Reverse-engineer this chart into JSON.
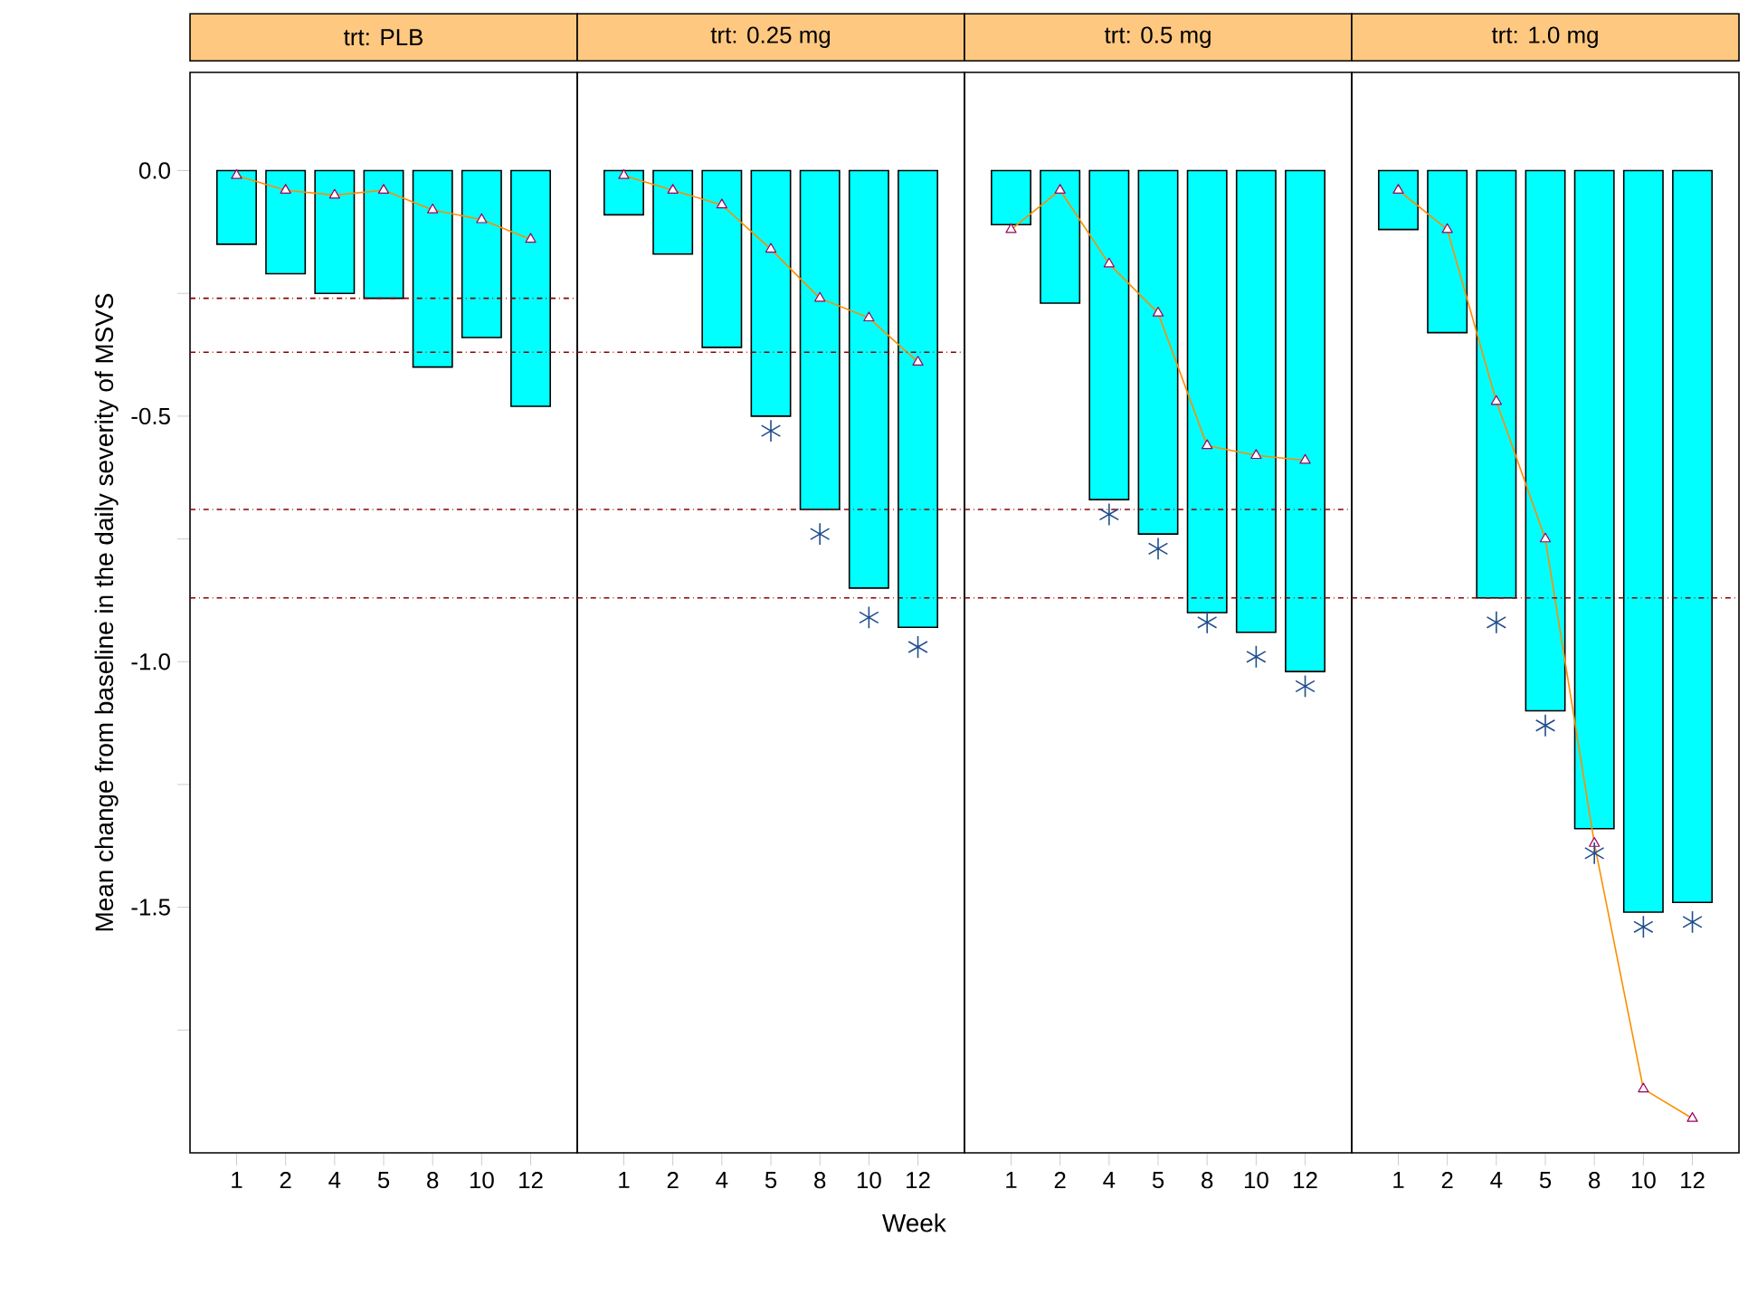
{
  "chart_data": [
    {
      "type": "bar",
      "title": "trt: PLB",
      "ylabel": "Mean change from baseline in the daily severity of MSVS",
      "categories": [
        "1",
        "2",
        "4",
        "5",
        "8",
        "10",
        "12"
      ],
      "ylim": [
        -2.0,
        0.2
      ],
      "yticks": [
        {
          "value": 0,
          "label": "0.0"
        },
        {
          "value": -0.25,
          "label": null
        },
        -0.5,
        {
          "value": -0.75,
          "label": null
        },
        {
          "value": -1,
          "label": "-1.0"
        },
        {
          "value": -1.25,
          "label": null
        },
        -1.5,
        {
          "value": -1.75,
          "label": null
        }
      ],
      "series": [
        {
          "color": "#00ffff",
          "values": [
            -0.15,
            -0.21,
            -0.25,
            -0.26,
            -0.4,
            -0.34,
            -0.48
          ]
        },
        {
          "type": "line",
          "color": "#ff8c00",
          "marker": "triangle",
          "values": [
            -0.01,
            -0.04,
            -0.05,
            -0.04,
            -0.08,
            -0.1,
            -0.14
          ]
        }
      ],
      "ref_lines": [
        {
          "axis": "y",
          "value": -0.26,
          "color": "#8b0000",
          "line_style": "dashdot"
        },
        {
          "axis": "y",
          "value": -0.37,
          "color": "#8b0000",
          "line_style": "dashdot"
        },
        {
          "axis": "y",
          "value": -0.69,
          "color": "#8b0000",
          "line_style": "dashdot"
        },
        {
          "axis": "y",
          "value": -0.87,
          "color": "#8b0000",
          "line_style": "dashdot"
        }
      ]
    },
    {
      "type": "bar",
      "title": "trt: 0.25 mg",
      "xlabel": "Week",
      "categories": [
        "1",
        "2",
        "4",
        "5",
        "8",
        "10",
        "12"
      ],
      "ylim": [
        -2.0,
        0.2
      ],
      "tick_labels": "x",
      "series": [
        {
          "color": "#00ffff",
          "values": [
            -0.09,
            -0.17,
            -0.36,
            -0.5,
            -0.69,
            -0.85,
            -0.93
          ]
        },
        {
          "type": "line",
          "color": "#ff8c00",
          "marker": "triangle",
          "values": [
            -0.01,
            -0.04,
            -0.07,
            -0.16,
            -0.26,
            -0.3,
            -0.39
          ]
        },
        {
          "type": "scatter",
          "color": "#1f4e8c",
          "marker": "cross",
          "values": [
            null,
            null,
            null,
            -0.53,
            -0.74,
            -0.91,
            -0.97
          ]
        }
      ],
      "ref_lines": [
        {
          "axis": "y",
          "value": -0.37,
          "color": "#8b0000",
          "line_style": "dashdot"
        },
        {
          "axis": "y",
          "value": -0.69,
          "color": "#8b0000",
          "line_style": "dashdot"
        },
        {
          "axis": "y",
          "value": -0.87,
          "color": "#8b0000",
          "line_style": "dashdot"
        }
      ]
    },
    {
      "type": "bar",
      "title": "trt: 0.5 mg",
      "categories": [
        "1",
        "2",
        "4",
        "5",
        "8",
        "10",
        "12"
      ],
      "ylim": [
        -2.0,
        0.2
      ],
      "tick_labels": "x",
      "series": [
        {
          "color": "#00ffff",
          "values": [
            -0.11,
            -0.27,
            -0.67,
            -0.74,
            -0.9,
            -0.94,
            -1.02
          ]
        },
        {
          "type": "line",
          "color": "#ff8c00",
          "marker": "triangle",
          "values": [
            -0.12,
            -0.04,
            -0.19,
            -0.29,
            -0.56,
            -0.58,
            -0.59
          ]
        },
        {
          "type": "scatter",
          "color": "#1f4e8c",
          "marker": "cross",
          "values": [
            null,
            null,
            -0.7,
            -0.77,
            -0.92,
            -0.99,
            -1.05
          ]
        }
      ],
      "ref_lines": [
        {
          "axis": "y",
          "value": -0.69,
          "color": "#8b0000",
          "line_style": "dashdot"
        },
        {
          "axis": "y",
          "value": -0.87,
          "color": "#8b0000",
          "line_style": "dashdot"
        }
      ]
    },
    {
      "type": "bar",
      "title": "trt: 1.0 mg",
      "categories": [
        "1",
        "2",
        "4",
        "5",
        "8",
        "10",
        "12"
      ],
      "ylim": [
        -2.0,
        0.2
      ],
      "tick_labels": "x",
      "series": [
        {
          "color": "#00ffff",
          "values": [
            -0.12,
            -0.33,
            -0.87,
            -1.1,
            -1.34,
            -1.51,
            -1.49
          ]
        },
        {
          "type": "line",
          "color": "#ff8c00",
          "marker": "triangle",
          "values": [
            -0.04,
            -0.12,
            -0.47,
            -0.75,
            -1.37,
            -1.87,
            -1.93
          ]
        },
        {
          "type": "scatter",
          "color": "#1f4e8c",
          "marker": "cross",
          "values": [
            null,
            null,
            -0.92,
            -1.13,
            -1.39,
            -1.54,
            -1.53
          ]
        }
      ],
      "ref_lines": [
        {
          "axis": "y",
          "value": -0.87,
          "color": "#8b0000",
          "line_style": "dashdot"
        }
      ]
    }
  ]
}
